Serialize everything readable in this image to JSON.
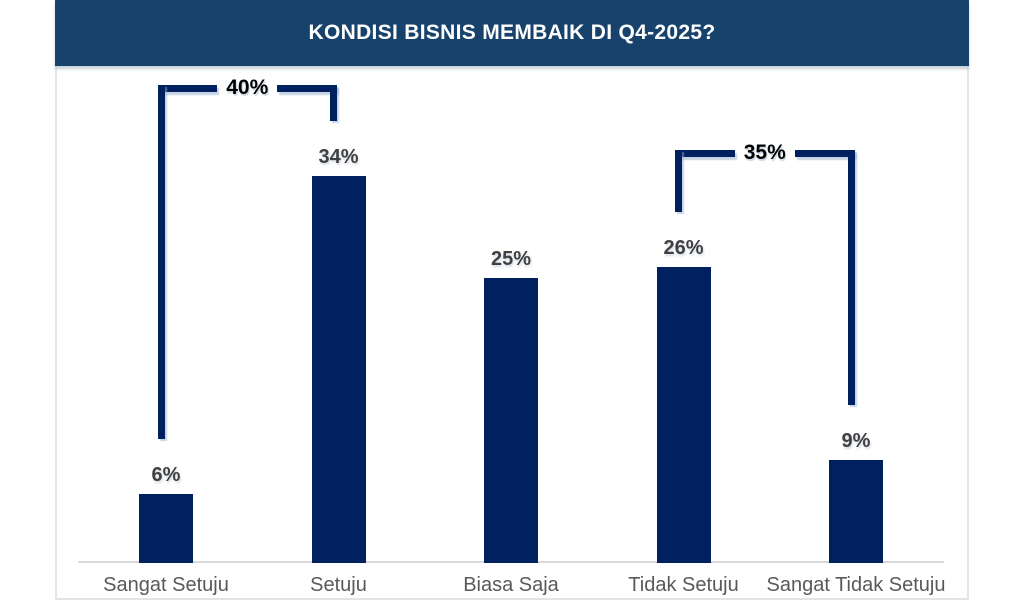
{
  "header": {
    "title": "KONDISI BISNIS MEMBAIK DI Q4-2025?"
  },
  "chart_data": {
    "type": "bar",
    "title": "KONDISI BISNIS MEMBAIK DI Q4-2025?",
    "categories": [
      "Sangat Setuju",
      "Setuju",
      "Biasa Saja",
      "Tidak Setuju",
      "Sangat Tidak Setuju"
    ],
    "values": [
      6,
      34,
      25,
      26,
      9
    ],
    "value_labels": [
      "6%",
      "34%",
      "25%",
      "26%",
      "9%"
    ],
    "xlabel": "",
    "ylabel": "",
    "ylim": [
      0,
      44
    ],
    "grid": false,
    "legend": "none",
    "annotations": [
      {
        "label": "40%",
        "from": 0,
        "to": 1
      },
      {
        "label": "35%",
        "from": 3,
        "to": 4
      }
    ],
    "colors": {
      "bar": "#002060",
      "bracket_line": "#002060",
      "title_bar_bg": "#17426B",
      "title_text": "#FFFFFF",
      "value_label": "#404040",
      "category_label": "#595959",
      "annotation_label": "#000000",
      "axis_line": "#D9D9D9",
      "background": "#FFFFFF"
    }
  }
}
